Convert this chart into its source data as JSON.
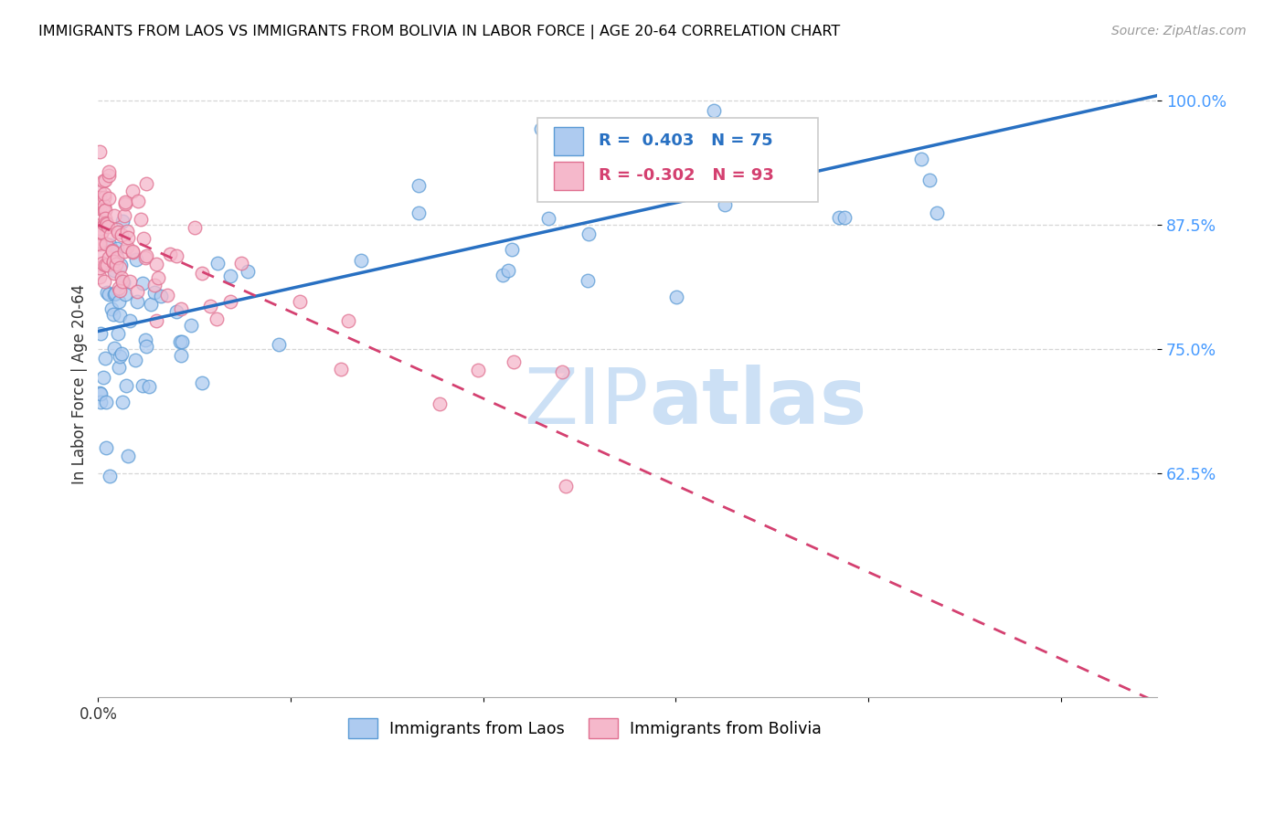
{
  "title": "IMMIGRANTS FROM LAOS VS IMMIGRANTS FROM BOLIVIA IN LABOR FORCE | AGE 20-64 CORRELATION CHART",
  "source": "Source: ZipAtlas.com",
  "ylabel": "In Labor Force | Age 20-64",
  "xlim": [
    0.0,
    0.55
  ],
  "ylim": [
    0.4,
    1.03
  ],
  "ytick_vals": [
    0.625,
    0.75,
    0.875,
    1.0
  ],
  "ytick_labels": [
    "62.5%",
    "75.0%",
    "87.5%",
    "100.0%"
  ],
  "xtick_vals": [
    0.0,
    0.1,
    0.2,
    0.3,
    0.4,
    0.5
  ],
  "xtick_labels": [
    "0.0%",
    "",
    "",
    "",
    "",
    ""
  ],
  "legend_R_laos": "0.403",
  "legend_N_laos": "75",
  "legend_R_bolivia": "-0.302",
  "legend_N_bolivia": "93",
  "color_laos_fill": "#aecbf0",
  "color_laos_edge": "#5b9bd5",
  "color_bolivia_fill": "#f5b8cb",
  "color_bolivia_edge": "#e07090",
  "line_color_laos": "#2870c2",
  "line_color_bolivia": "#d44070",
  "ytick_color": "#4499ff",
  "watermark_color": "#cce0f5",
  "laos_line_x0": 0.0,
  "laos_line_x1": 0.55,
  "laos_line_y0": 0.768,
  "laos_line_y1": 1.005,
  "bolivia_line_x0": 0.0,
  "bolivia_line_x1": 0.55,
  "bolivia_line_y0": 0.875,
  "bolivia_line_y1": 0.395
}
